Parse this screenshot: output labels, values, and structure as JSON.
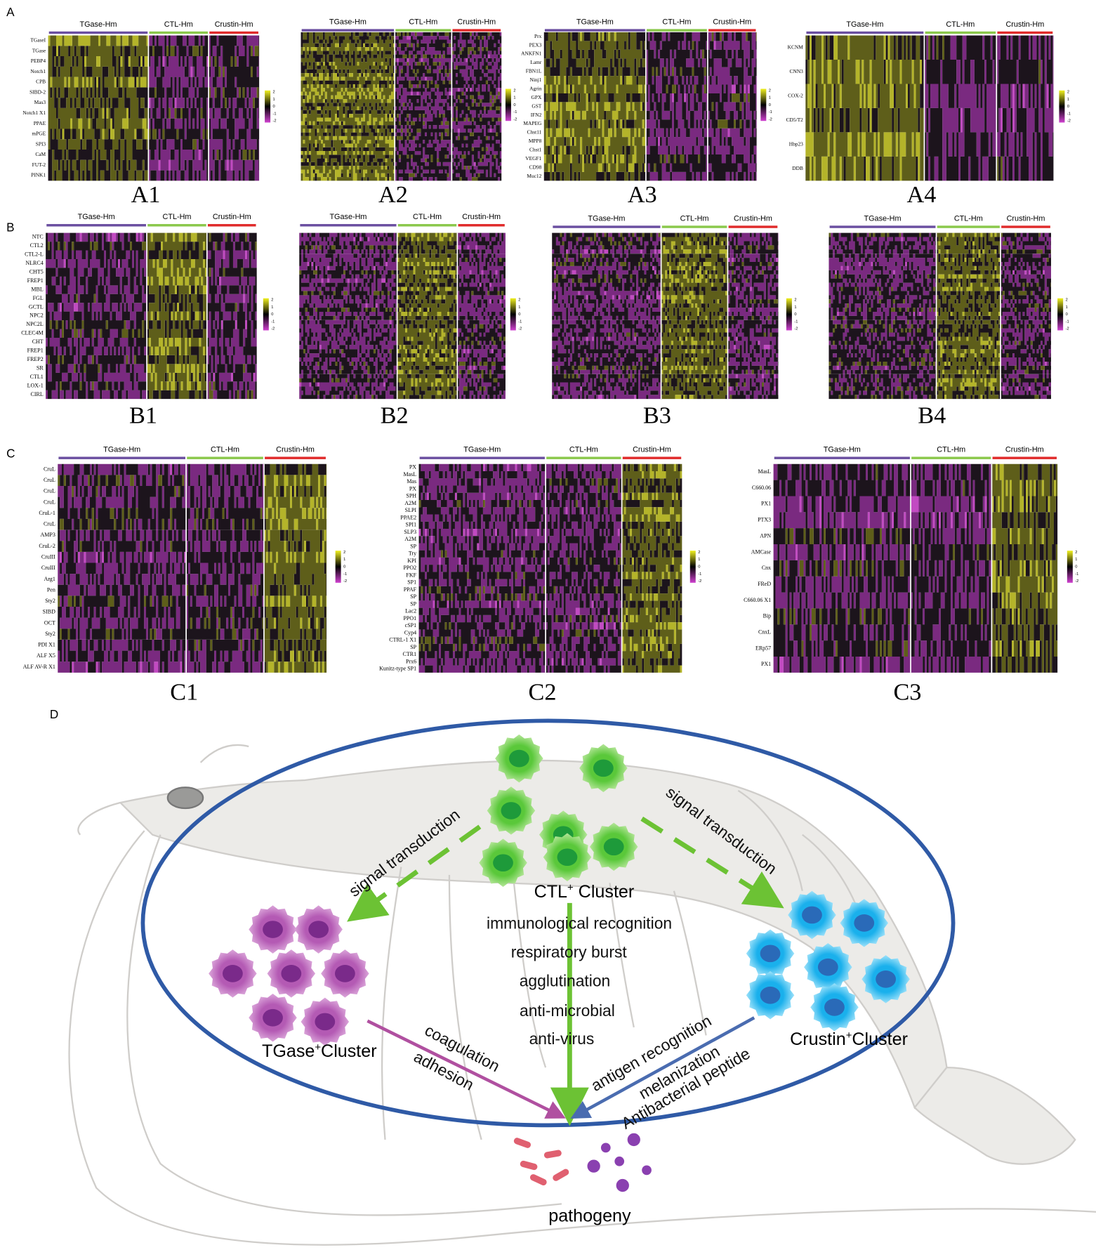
{
  "section_labels": [
    "A",
    "B",
    "C",
    "D"
  ],
  "groups": [
    "TGase-Hm",
    "CTL-Hm",
    "Crustin-Hm"
  ],
  "scale_ticks": [
    "2",
    "1",
    "0",
    "-1",
    "-2"
  ],
  "panels": [
    {
      "label": "A1",
      "genes": [
        "TGaseI",
        "TGase",
        "PEBP4",
        "Notch1",
        "CPB",
        "SIBD-2",
        "Mas3",
        "Notch1 X1",
        "PPAE",
        "mPGE",
        "SPI3",
        "CaM",
        "FUT-2",
        "PINK1"
      ]
    },
    {
      "label": "A2"
    },
    {
      "label": "A3",
      "genes": [
        "Prx",
        "PEX3",
        "ANKFN1",
        "Lamr",
        "FBN1L",
        "Ninj1",
        "Agrin",
        "GPX",
        "GST",
        "IFN2",
        "MAPEG",
        "Chst11",
        "MPP8",
        "Chst1",
        "VEGF1",
        "CD98",
        "Muc12"
      ]
    },
    {
      "label": "A4",
      "genes": [
        "KCNM",
        "CNN3",
        "COX-2",
        "CD5/T2",
        "Hbp23",
        "DDB"
      ]
    },
    {
      "label": "B1",
      "genes": [
        "NTC",
        "CTL2",
        "CTL2-L",
        "NLRC4",
        "CHT5",
        "FREP1",
        "MBL",
        "FGL",
        "GCTL",
        "NPC2",
        "NPC2L",
        "CLEC4M",
        "CHT",
        "FREP1",
        "FREP2",
        "SR",
        "CTL1",
        "LOX-1",
        "CIRL"
      ]
    },
    {
      "label": "B2"
    },
    {
      "label": "B3"
    },
    {
      "label": "B4"
    },
    {
      "label": "C1",
      "genes": [
        "CruL",
        "CruL",
        "CruL",
        "CruL",
        "CruL-1",
        "CruL",
        "AMP3",
        "CruL-2",
        "CruIII",
        "CruIII",
        "Arg1",
        "Pen",
        "Sty2",
        "SIBD",
        "OCT",
        "Sty2",
        "PDI X1",
        "ALF X5",
        "ALF AV-R X1"
      ]
    },
    {
      "label": "C2",
      "genes": [
        "PX",
        "MasL",
        "Mas",
        "PX",
        "SPH",
        "A2M",
        "SLPI",
        "PPAE2",
        "SPI1",
        "SLP3",
        "A2M",
        "SP",
        "Try",
        "KPI",
        "PPO2",
        "FKF",
        "SP1",
        "PPAF",
        "SP",
        "SP",
        "Lac2",
        "PPO1",
        "cSP1",
        "Cyp4",
        "CTRL-1 X1",
        "SP",
        "CTR1",
        "Prx6",
        "Kunitz-type SP1"
      ]
    },
    {
      "label": "C3",
      "genes": [
        "MasL",
        "C660.06",
        "PX1",
        "PTX3",
        "APN",
        "AMCase",
        "Cnx",
        "FReD",
        "C660.06 X1",
        "Bip",
        "CnxL",
        "ERp57",
        "PX1"
      ]
    }
  ],
  "diagram": {
    "signal_left": "signal transduction",
    "signal_right": "signal transduction",
    "ctl_cluster": [
      "CTL",
      "+",
      " Cluster"
    ],
    "ctl_functions": [
      "immunological recognition",
      "respiratory burst",
      "agglutination",
      "anti-microbial",
      "anti-virus"
    ],
    "tgase_cluster": [
      "TGase",
      "+",
      "Cluster"
    ],
    "tgase_functions": [
      "coagulation",
      "adhesion"
    ],
    "crustin_cluster": [
      "Crustin",
      "+",
      "Cluster"
    ],
    "crustin_functions": [
      "antigen recognition",
      "melanization",
      "Antibacterial peptide"
    ],
    "pathogeny": "pathogeny"
  }
}
